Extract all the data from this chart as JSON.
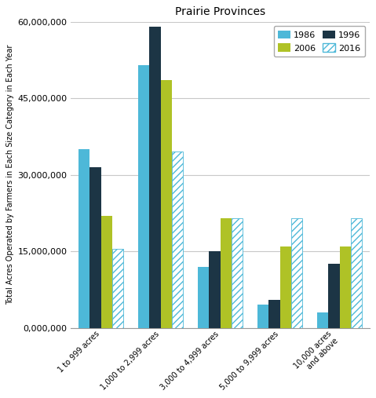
{
  "title": "Prairie Provinces",
  "ylabel": "Total Acres Operated by Farmers in Each Size Category in Each Year",
  "categories": [
    "1 to 999 acres",
    "1,000 to 2,999 acres",
    "3,000 to 4,999 acres",
    "5,000 to 9,999 acres",
    "10,000 acres\nand above"
  ],
  "years": [
    "1986",
    "1996",
    "2006",
    "2016"
  ],
  "values": {
    "1986": [
      35000000,
      51500000,
      12000000,
      4500000,
      3000000
    ],
    "1996": [
      31500000,
      59000000,
      15000000,
      5500000,
      12500000
    ],
    "2006": [
      22000000,
      48500000,
      21500000,
      16000000,
      16000000
    ],
    "2016": [
      15500000,
      34500000,
      21500000,
      21500000,
      21500000
    ]
  },
  "bar_colors": {
    "1986": "#4db8d8",
    "1996": "#1c3545",
    "2006": "#afc226",
    "2016_face": "#ffffff",
    "2016_edge": "#4db8d8",
    "2016_hatch": "#4db8d8"
  },
  "ylim": [
    0,
    60000000
  ],
  "yticks": [
    0,
    15000000,
    30000000,
    45000000,
    60000000
  ],
  "ytick_labels": [
    "0,000,000",
    "15,000,000",
    "30,000,000",
    "45,000,000",
    "60,000,000"
  ],
  "background_color": "#ffffff",
  "grid_color": "#c8c8c8",
  "title_fontsize": 10,
  "label_fontsize": 7,
  "tick_fontsize": 8,
  "legend_fontsize": 8
}
